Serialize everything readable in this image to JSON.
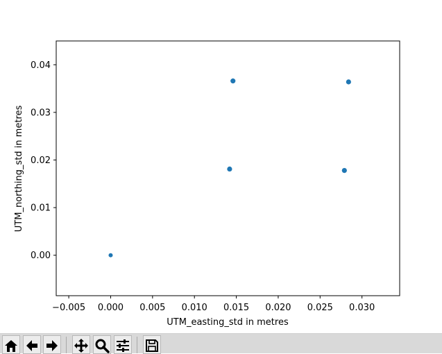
{
  "chart_data": {
    "type": "scatter",
    "title": "",
    "xlabel": "UTM_easting_std in metres",
    "ylabel": "UTM_northing_std in metres",
    "xlim": [
      -0.0065,
      0.0345
    ],
    "ylim": [
      -0.0085,
      0.045
    ],
    "xticks": [
      -0.005,
      0.0,
      0.005,
      0.01,
      0.015,
      0.02,
      0.025,
      0.03
    ],
    "xtick_labels": [
      "−0.005",
      "0.000",
      "0.005",
      "0.010",
      "0.015",
      "0.020",
      "0.025",
      "0.030"
    ],
    "yticks": [
      0.0,
      0.01,
      0.02,
      0.03,
      0.04
    ],
    "ytick_labels": [
      "0.00",
      "0.01",
      "0.02",
      "0.03",
      "0.04"
    ],
    "grid": false,
    "marker_color": "#1f77b4",
    "points": [
      {
        "x": 0.0,
        "y": 0.0
      },
      {
        "x": 0.0142,
        "y": 0.0181
      },
      {
        "x": 0.0146,
        "y": 0.0366
      },
      {
        "x": 0.0279,
        "y": 0.0178
      },
      {
        "x": 0.0284,
        "y": 0.0364
      }
    ]
  },
  "toolbar": {
    "buttons": [
      {
        "icon": "home-icon"
      },
      {
        "icon": "back-arrow-icon"
      },
      {
        "icon": "forward-arrow-icon"
      },
      {
        "icon": "pan-icon"
      },
      {
        "icon": "zoom-icon"
      },
      {
        "icon": "configure-subplots-icon"
      },
      {
        "icon": "save-icon"
      }
    ]
  }
}
